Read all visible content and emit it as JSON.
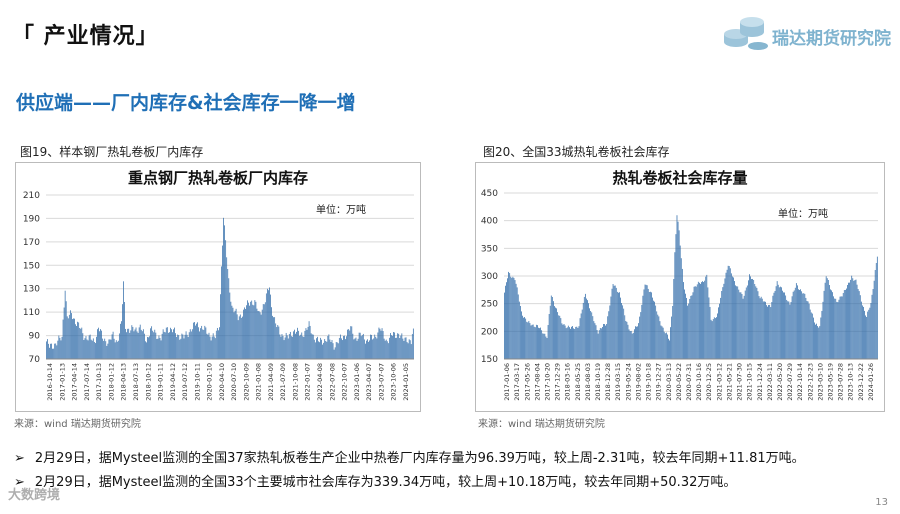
{
  "header": {
    "title": "「 产业情况」",
    "logo_text": "瑞达期货研究院"
  },
  "section_title": "供应端——厂内库存&社会库存一降一增",
  "figures": [
    {
      "caption": "图19、样本钢厂热轧卷板厂内库存",
      "source": "来源：wind   瑞达期货研究院"
    },
    {
      "caption": "图20、全国33城热轧卷板社会库存",
      "source": "来源：wind   瑞达期货研究院"
    }
  ],
  "bullets": [
    "2月29日，据Mysteel监测的全国37家热轧板卷生产企业中热卷厂内库存量为96.39万吨，较上周-2.31吨，较去年同期+11.81万吨。",
    "2月29日，据Mysteel监测的全国33个主要城市社会库存为339.34万吨，较上周+10.18万吨，较去年同期+50.32万吨。"
  ],
  "page_number": "13",
  "watermark": "大数跨境",
  "colors": {
    "bar": "#2e6aa8",
    "title_blue": "#1f6fb6",
    "logo": "#7fb3cf"
  },
  "chart_data": [
    {
      "type": "bar",
      "title": "重点钢厂热轧卷板厂内库存",
      "unit": "单位：万吨",
      "ylim": [
        70,
        210
      ],
      "yticks": [
        70,
        90,
        110,
        130,
        150,
        170,
        190,
        210
      ],
      "grid": true,
      "xtick_labels": [
        "2016-10-14",
        "2017-01-13",
        "2017-04-14",
        "2017-07-14",
        "2017-10-13",
        "2018-01-12",
        "2018-04-13",
        "2018-07-13",
        "2018-10-12",
        "2019-01-11",
        "2019-04-12",
        "2019-07-12",
        "2019-10-11",
        "2020-01-10",
        "2020-04-10",
        "2020-07-10",
        "2020-10-09",
        "2021-01-08",
        "2021-04-09",
        "2021-07-09",
        "2021-10-08",
        "2022-01-07",
        "2022-04-08",
        "2022-07-08",
        "2022-10-07",
        "2023-01-06",
        "2023-04-07",
        "2023-07-07",
        "2023-10-06",
        "2024-01-05"
      ],
      "keyframes": [
        [
          0,
          85
        ],
        [
          3,
          80
        ],
        [
          10,
          84
        ],
        [
          15,
          88
        ],
        [
          18,
          132
        ],
        [
          20,
          105
        ],
        [
          24,
          108
        ],
        [
          30,
          100
        ],
        [
          36,
          90
        ],
        [
          46,
          85
        ],
        [
          50,
          97
        ],
        [
          54,
          88
        ],
        [
          60,
          84
        ],
        [
          64,
          90
        ],
        [
          68,
          85
        ],
        [
          72,
          100
        ],
        [
          74,
          135
        ],
        [
          76,
          98
        ],
        [
          80,
          94
        ],
        [
          90,
          97
        ],
        [
          96,
          86
        ],
        [
          100,
          95
        ],
        [
          110,
          88
        ],
        [
          116,
          97
        ],
        [
          124,
          92
        ],
        [
          132,
          88
        ],
        [
          138,
          95
        ],
        [
          144,
          100
        ],
        [
          150,
          96
        ],
        [
          158,
          90
        ],
        [
          162,
          88
        ],
        [
          166,
          100
        ],
        [
          168,
          150
        ],
        [
          170,
          190
        ],
        [
          172,
          170
        ],
        [
          174,
          145
        ],
        [
          176,
          130
        ],
        [
          178,
          115
        ],
        [
          184,
          105
        ],
        [
          190,
          112
        ],
        [
          196,
          120
        ],
        [
          200,
          118
        ],
        [
          204,
          108
        ],
        [
          210,
          120
        ],
        [
          214,
          132
        ],
        [
          216,
          115
        ],
        [
          220,
          100
        ],
        [
          224,
          92
        ],
        [
          232,
          88
        ],
        [
          238,
          95
        ],
        [
          244,
          90
        ],
        [
          252,
          98
        ],
        [
          256,
          90
        ],
        [
          262,
          84
        ],
        [
          270,
          88
        ],
        [
          276,
          82
        ],
        [
          284,
          88
        ],
        [
          288,
          92
        ],
        [
          292,
          96
        ],
        [
          296,
          88
        ],
        [
          302,
          90
        ],
        [
          308,
          86
        ],
        [
          314,
          88
        ],
        [
          320,
          96
        ],
        [
          326,
          86
        ],
        [
          332,
          90
        ],
        [
          338,
          92
        ],
        [
          342,
          86
        ],
        [
          346,
          88
        ],
        [
          350,
          84
        ],
        [
          352,
          96
        ]
      ]
    },
    {
      "type": "bar",
      "title": "热轧卷板社会库存量",
      "unit": "单位：万吨",
      "ylim": [
        150,
        450
      ],
      "yticks": [
        150,
        200,
        250,
        300,
        350,
        400,
        450
      ],
      "grid": true,
      "xtick_labels": [
        "2017-01-06",
        "2017-03-17",
        "2017-05-26",
        "2017-08-04",
        "2017-10-20",
        "2017-12-29",
        "2018-03-16",
        "2018-05-25",
        "2018-08-03",
        "2018-10-19",
        "2018-12-28",
        "2019-03-15",
        "2019-05-24",
        "2019-08-02",
        "2019-10-18",
        "2019-12-27",
        "2020-03-13",
        "2020-05-22",
        "2020-07-31",
        "2020-10-16",
        "2020-12-25",
        "2021-03-12",
        "2021-05-21",
        "2021-07-30",
        "2021-10-15",
        "2021-12-24",
        "2022-03-11",
        "2022-05-20",
        "2022-07-29",
        "2022-10-14",
        "2022-12-23",
        "2023-03-10",
        "2023-05-19",
        "2023-07-28",
        "2023-10-13",
        "2023-12-22",
        "2024-01-26"
      ],
      "keyframes": [
        [
          0,
          270
        ],
        [
          4,
          305
        ],
        [
          10,
          295
        ],
        [
          16,
          235
        ],
        [
          22,
          215
        ],
        [
          30,
          210
        ],
        [
          36,
          200
        ],
        [
          40,
          190
        ],
        [
          44,
          265
        ],
        [
          48,
          245
        ],
        [
          54,
          215
        ],
        [
          62,
          205
        ],
        [
          70,
          210
        ],
        [
          76,
          270
        ],
        [
          82,
          230
        ],
        [
          88,
          200
        ],
        [
          96,
          215
        ],
        [
          102,
          285
        ],
        [
          108,
          270
        ],
        [
          114,
          220
        ],
        [
          120,
          195
        ],
        [
          126,
          215
        ],
        [
          132,
          285
        ],
        [
          138,
          270
        ],
        [
          144,
          230
        ],
        [
          150,
          200
        ],
        [
          155,
          185
        ],
        [
          158,
          250
        ],
        [
          160,
          340
        ],
        [
          162,
          410
        ],
        [
          164,
          380
        ],
        [
          168,
          290
        ],
        [
          172,
          245
        ],
        [
          178,
          280
        ],
        [
          186,
          290
        ],
        [
          190,
          300
        ],
        [
          194,
          220
        ],
        [
          200,
          230
        ],
        [
          206,
          290
        ],
        [
          210,
          320
        ],
        [
          214,
          300
        ],
        [
          220,
          275
        ],
        [
          224,
          260
        ],
        [
          230,
          300
        ],
        [
          236,
          285
        ],
        [
          240,
          260
        ],
        [
          246,
          250
        ],
        [
          250,
          245
        ],
        [
          256,
          290
        ],
        [
          262,
          270
        ],
        [
          268,
          250
        ],
        [
          274,
          285
        ],
        [
          280,
          270
        ],
        [
          286,
          250
        ],
        [
          292,
          210
        ],
        [
          296,
          210
        ],
        [
          302,
          300
        ],
        [
          306,
          280
        ],
        [
          312,
          250
        ],
        [
          316,
          265
        ],
        [
          322,
          280
        ],
        [
          326,
          300
        ],
        [
          330,
          290
        ],
        [
          336,
          250
        ],
        [
          340,
          225
        ],
        [
          344,
          250
        ],
        [
          348,
          310
        ],
        [
          350,
          335
        ]
      ]
    }
  ]
}
